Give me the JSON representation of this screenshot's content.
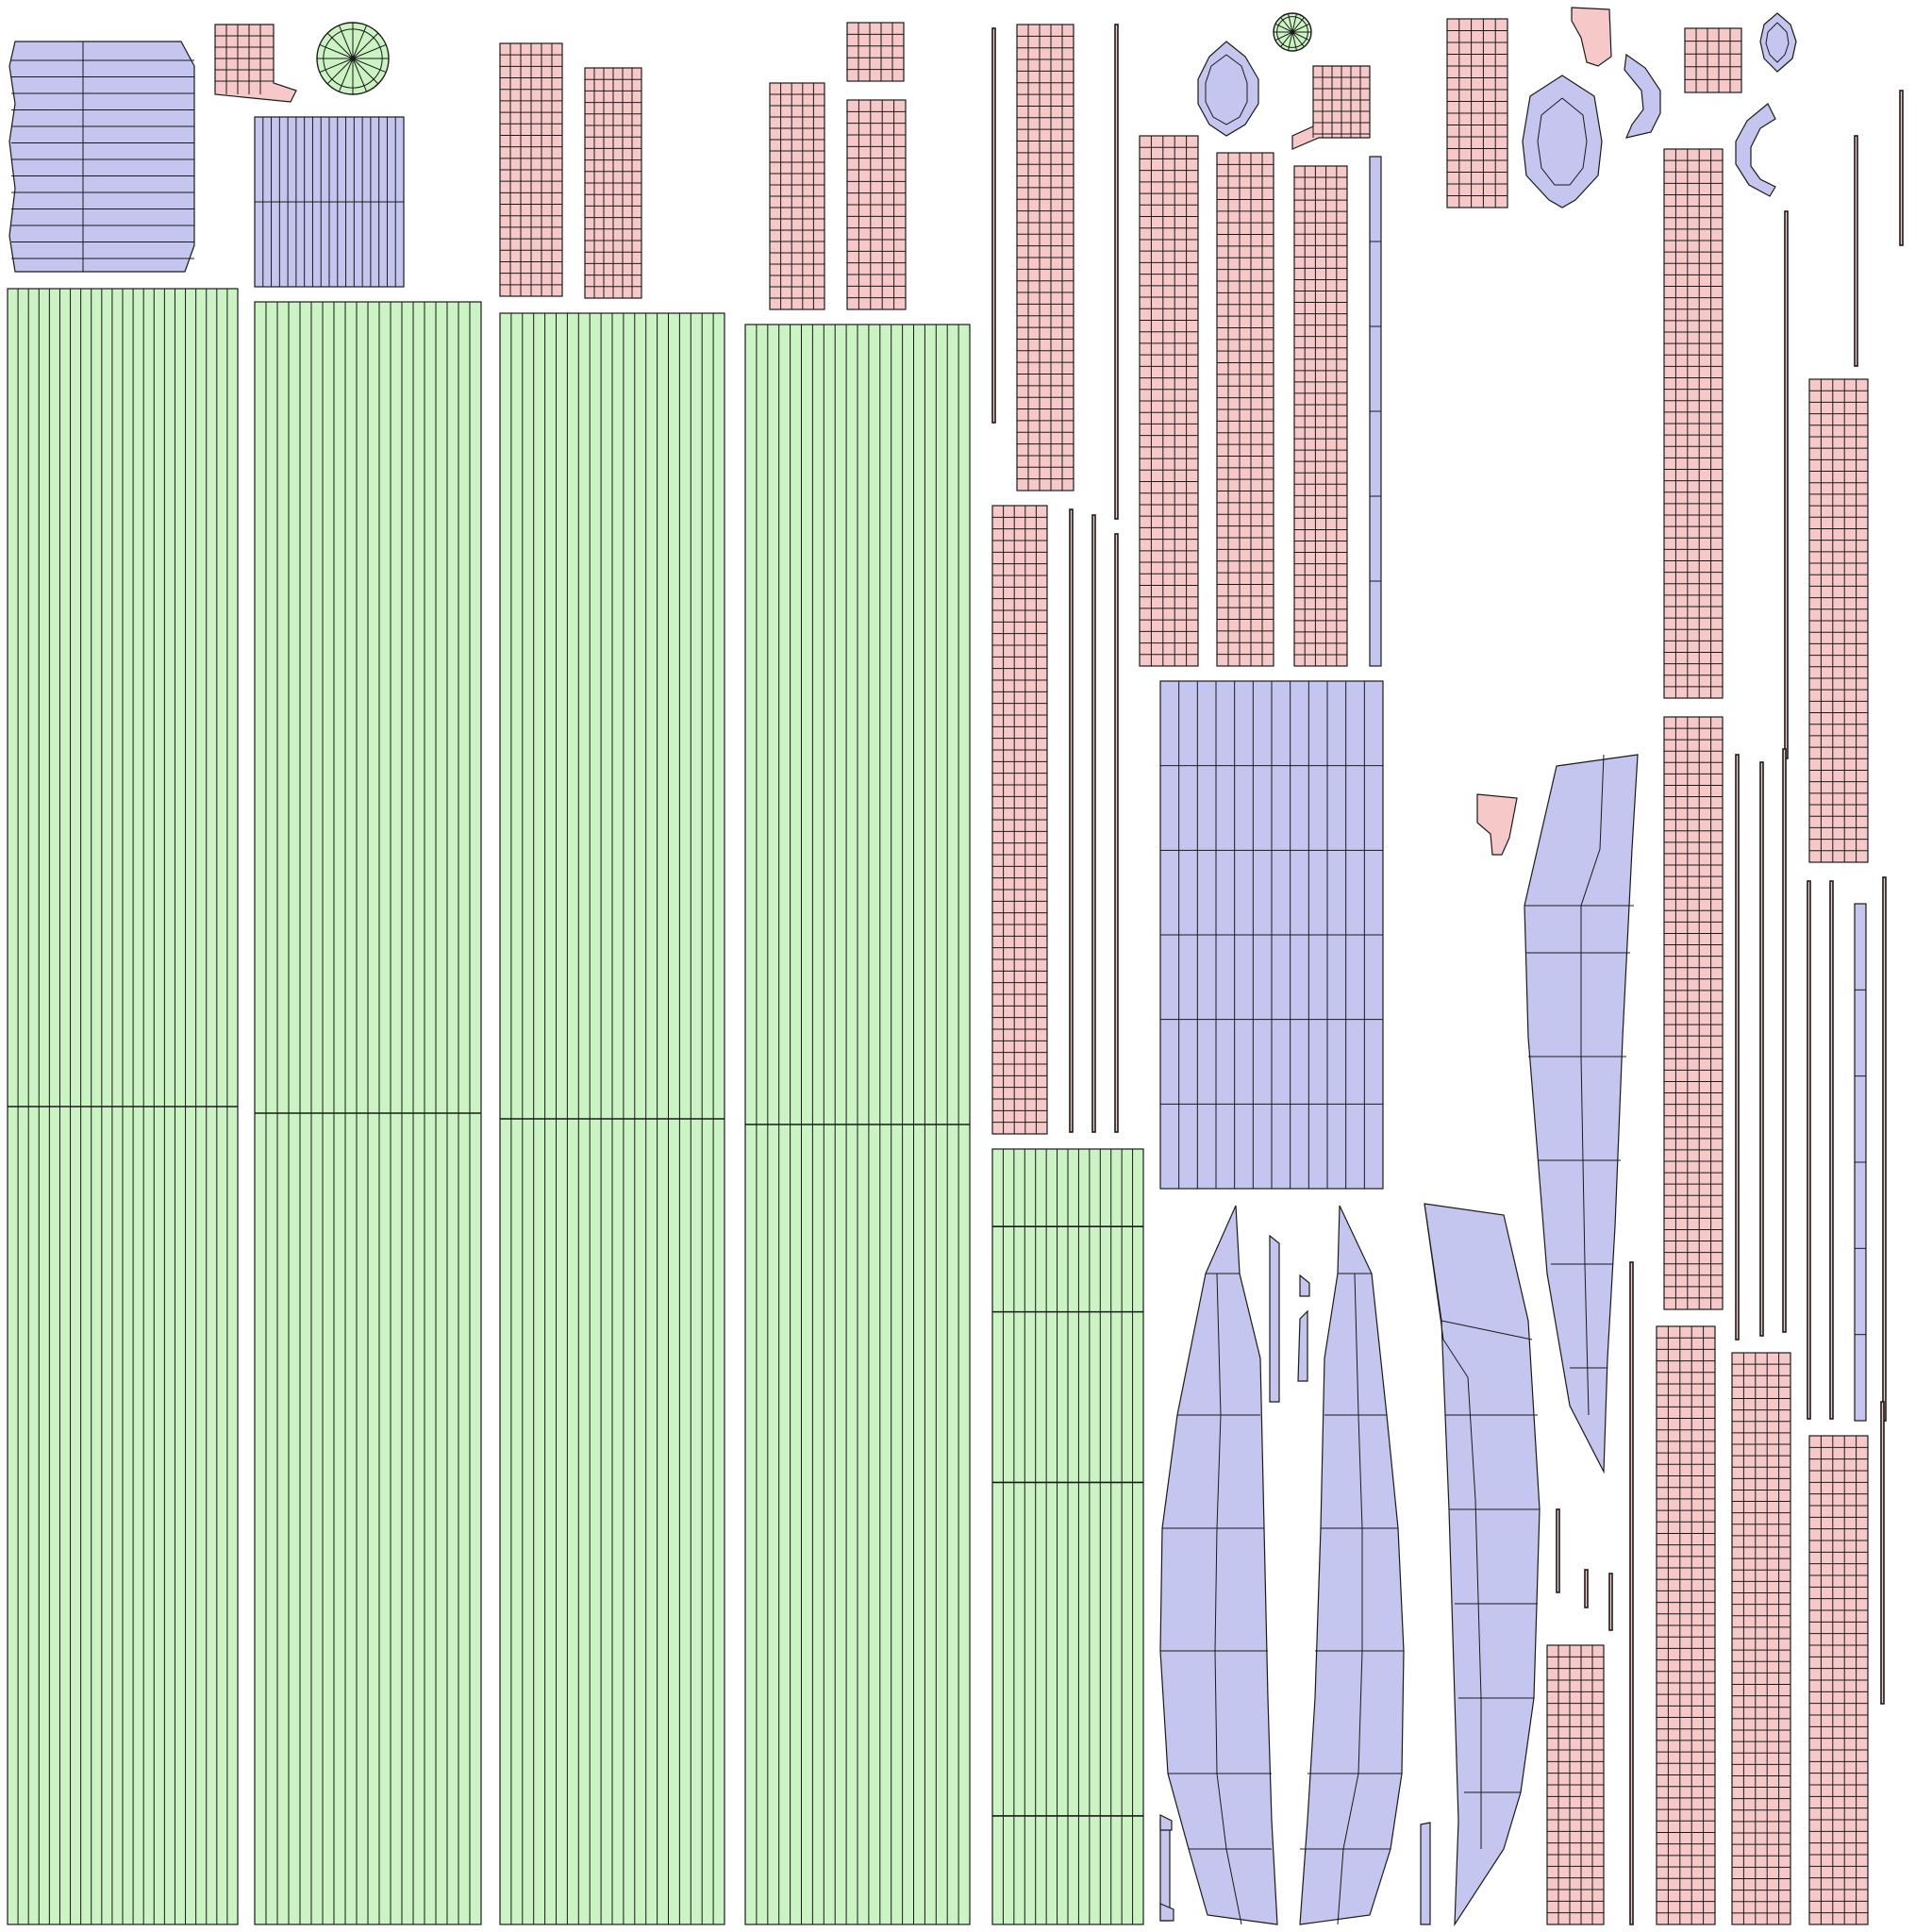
{
  "colors": {
    "background": "#ffffff",
    "green": "#cbf3c3",
    "pink": "#f6c8c8",
    "blue": "#c5c6ef",
    "line": "#1a1a1a"
  }
}
